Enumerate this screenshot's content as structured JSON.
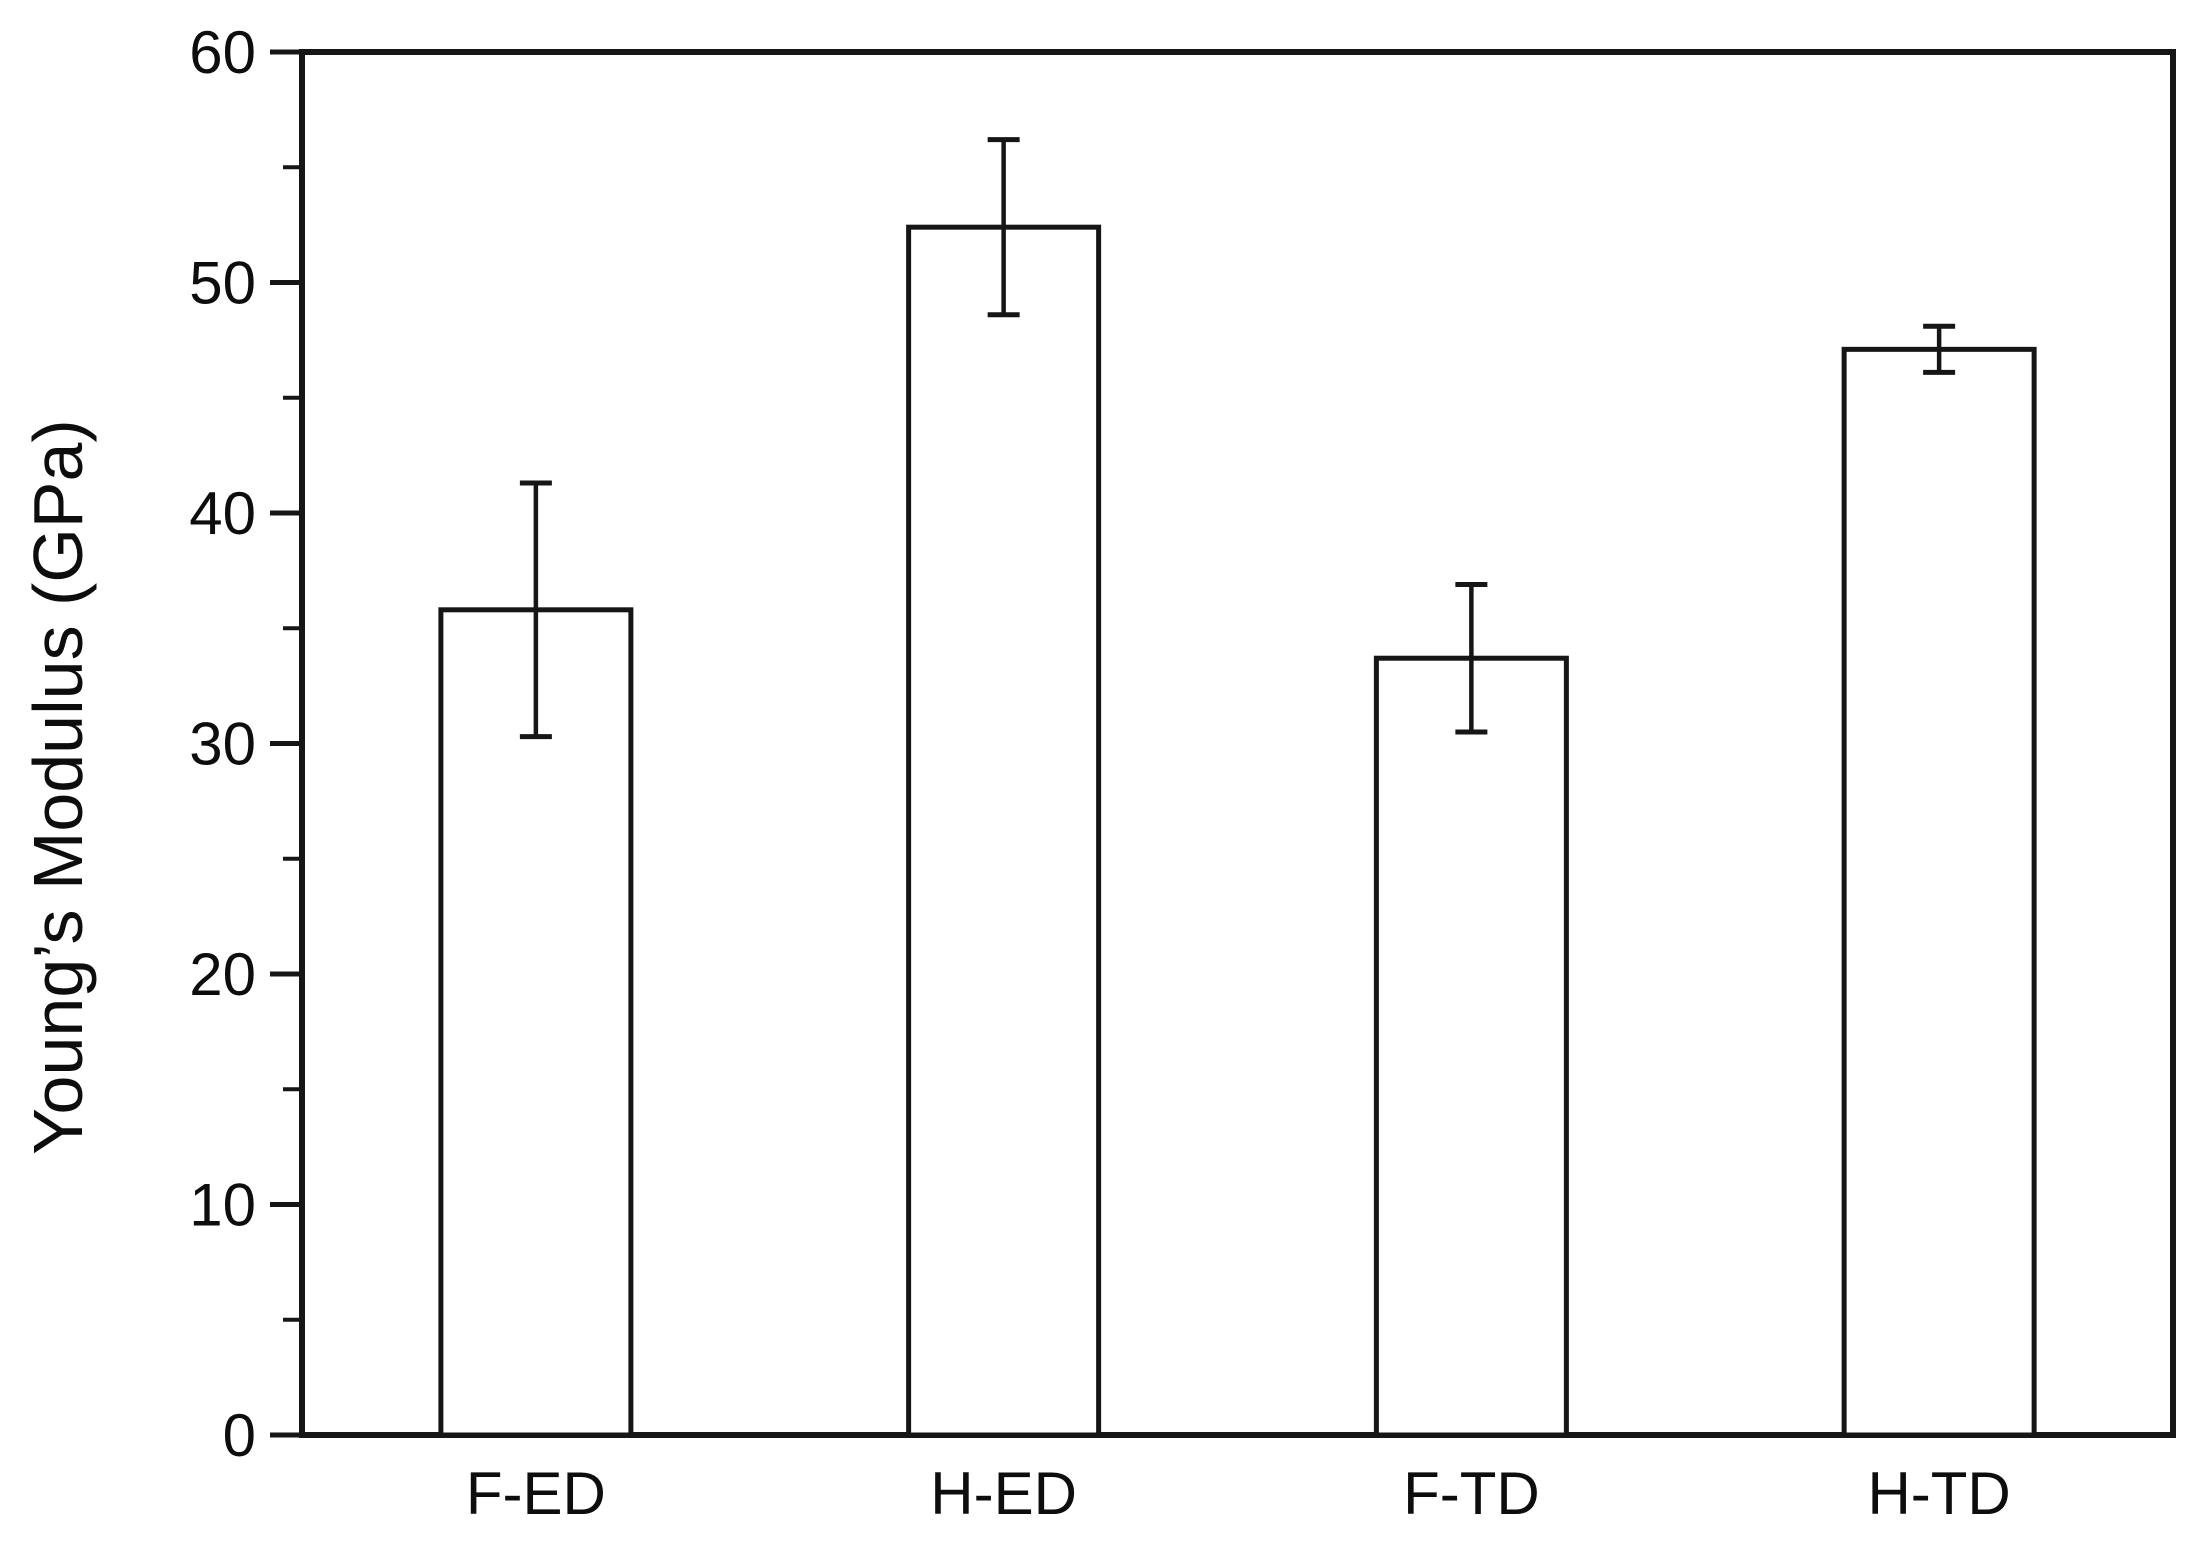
{
  "chart_data": {
    "type": "bar",
    "title": "",
    "categories": [
      "F-ED",
      "H-ED",
      "F-TD",
      "H-TD"
    ],
    "series": [
      {
        "name": "Young's Modulus",
        "values": [
          35.8,
          52.4,
          33.7,
          47.1
        ],
        "errors": [
          5.5,
          3.8,
          3.2,
          1.0
        ]
      }
    ],
    "xlabel": "",
    "ylabel": "Young’s Modulus (GPa)",
    "ylim": [
      0,
      60
    ],
    "ytick_major": [
      0,
      10,
      20,
      30,
      40,
      50,
      60
    ],
    "ytick_minor": [
      5,
      15,
      25,
      35,
      45,
      55
    ],
    "grid": false,
    "legend": false,
    "error_bars": true,
    "colors": {
      "background": "#ffffff",
      "bar_fill": "#ffffff",
      "line": "#161616",
      "text": "#0d0d0d"
    }
  }
}
